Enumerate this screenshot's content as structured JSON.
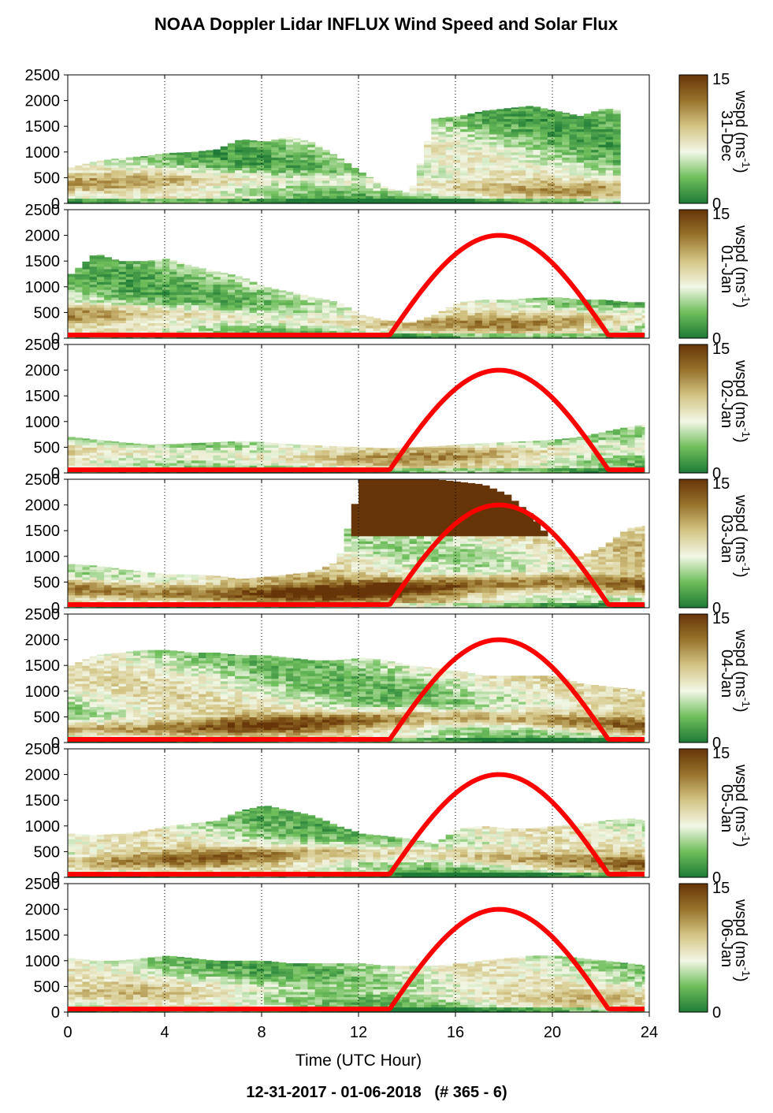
{
  "title": "NOAA Doppler Lidar INFLUX Wind Speed and Solar Flux",
  "footer": "12-31-2017 - 01-06-2018   (# 365 - 6)",
  "colors": {
    "ramp": [
      "#1e7a36",
      "#6fbe5b",
      "#f2f7e6",
      "#d4c585",
      "#98742c",
      "#663508"
    ],
    "solar_curve": "#ff0000"
  },
  "chart_data": {
    "type": "heatmap",
    "xlabel": "Time (UTC Hour)",
    "x_ticks": [
      0,
      4,
      8,
      12,
      16,
      20,
      24
    ],
    "xlim": [
      0,
      24
    ],
    "ylim": [
      0,
      2500
    ],
    "y_ticks": [
      0,
      500,
      1000,
      1500,
      2000,
      2500
    ],
    "colorbar": {
      "label": "wspd (ms-1)",
      "label_main": "wspd (ms",
      "label_sup": "-1",
      "label_close": ")",
      "vmin": 0,
      "vmax": 15,
      "ticks": [
        0,
        15
      ]
    },
    "grid": "dotted vertical lines at x ticks",
    "panels": [
      {
        "date": "31-Dec",
        "solar_curve": false,
        "cover": [
          [
            0,
            700
          ],
          [
            1,
            820
          ],
          [
            2,
            880
          ],
          [
            3,
            920
          ],
          [
            4,
            980
          ],
          [
            5,
            1000
          ],
          [
            6,
            1050
          ],
          [
            7,
            1250
          ],
          [
            8,
            1200
          ],
          [
            9,
            1300
          ],
          [
            10,
            1180
          ],
          [
            11,
            900
          ],
          [
            12,
            600
          ],
          [
            13,
            300
          ],
          [
            14,
            200
          ],
          [
            15,
            1650
          ],
          [
            16,
            1700
          ],
          [
            17,
            1800
          ],
          [
            18,
            1850
          ],
          [
            19,
            1900
          ],
          [
            20,
            1800
          ],
          [
            21,
            1700
          ],
          [
            22,
            1850
          ],
          [
            22.8,
            1800
          ]
        ],
        "end_hour": 22.8,
        "base": 0.28,
        "low_jet": 0.55
      },
      {
        "date": "01-Jan",
        "solar_curve": true,
        "cover": [
          [
            0,
            1250
          ],
          [
            1,
            1650
          ],
          [
            2,
            1500
          ],
          [
            3,
            1500
          ],
          [
            4,
            1550
          ],
          [
            5,
            1400
          ],
          [
            6,
            1300
          ],
          [
            7,
            1200
          ],
          [
            8,
            1000
          ],
          [
            9,
            900
          ],
          [
            10,
            800
          ],
          [
            11,
            700
          ],
          [
            12,
            450
          ],
          [
            13,
            350
          ],
          [
            14,
            300
          ],
          [
            15,
            450
          ],
          [
            16,
            700
          ],
          [
            17,
            750
          ],
          [
            18,
            750
          ],
          [
            19,
            780
          ],
          [
            20,
            800
          ],
          [
            21,
            750
          ],
          [
            22,
            750
          ],
          [
            23,
            700
          ],
          [
            23.8,
            700
          ]
        ],
        "end_hour": 23.8,
        "base": 0.3,
        "low_jet": 0.62
      },
      {
        "date": "02-Jan",
        "solar_curve": true,
        "cover": [
          [
            0,
            700
          ],
          [
            1,
            650
          ],
          [
            2,
            600
          ],
          [
            3,
            560
          ],
          [
            4,
            560
          ],
          [
            5,
            580
          ],
          [
            6,
            600
          ],
          [
            7,
            620
          ],
          [
            8,
            600
          ],
          [
            9,
            560
          ],
          [
            10,
            540
          ],
          [
            11,
            520
          ],
          [
            12,
            500
          ],
          [
            13,
            480
          ],
          [
            14,
            500
          ],
          [
            15,
            520
          ],
          [
            16,
            550
          ],
          [
            17,
            580
          ],
          [
            18,
            600
          ],
          [
            19,
            620
          ],
          [
            20,
            650
          ],
          [
            21,
            700
          ],
          [
            22,
            800
          ],
          [
            23,
            900
          ],
          [
            23.8,
            950
          ]
        ],
        "end_hour": 23.8,
        "base": 0.32,
        "low_jet": 0.58
      },
      {
        "date": "03-Jan",
        "solar_curve": true,
        "cover": [
          [
            0,
            850
          ],
          [
            1,
            820
          ],
          [
            2,
            760
          ],
          [
            3,
            700
          ],
          [
            4,
            650
          ],
          [
            5,
            650
          ],
          [
            6,
            620
          ],
          [
            7,
            560
          ],
          [
            8,
            600
          ],
          [
            9,
            650
          ],
          [
            10,
            700
          ],
          [
            11,
            900
          ],
          [
            12,
            2500
          ],
          [
            13,
            2500
          ],
          [
            14,
            2500
          ],
          [
            15,
            2500
          ],
          [
            16,
            2450
          ],
          [
            17,
            2400
          ],
          [
            18,
            2200
          ],
          [
            19,
            1800
          ],
          [
            20,
            1200
          ],
          [
            21,
            1000
          ],
          [
            22,
            1200
          ],
          [
            23,
            1550
          ],
          [
            23.8,
            1600
          ]
        ],
        "end_hour": 23.8,
        "base": 0.45,
        "low_jet": 0.95
      },
      {
        "date": "04-Jan",
        "solar_curve": true,
        "cover": [
          [
            0,
            1500
          ],
          [
            1,
            1700
          ],
          [
            2,
            1750
          ],
          [
            3,
            1800
          ],
          [
            4,
            1800
          ],
          [
            5,
            1750
          ],
          [
            6,
            1750
          ],
          [
            7,
            1700
          ],
          [
            8,
            1700
          ],
          [
            9,
            1650
          ],
          [
            10,
            1600
          ],
          [
            11,
            1600
          ],
          [
            12,
            1650
          ],
          [
            13,
            1600
          ],
          [
            14,
            1500
          ],
          [
            15,
            1450
          ],
          [
            16,
            1400
          ],
          [
            17,
            1300
          ],
          [
            18,
            1300
          ],
          [
            19,
            1300
          ],
          [
            20,
            1300
          ],
          [
            21,
            1150
          ],
          [
            22,
            1100
          ],
          [
            23,
            1050
          ],
          [
            23.8,
            1000
          ]
        ],
        "end_hour": 23.8,
        "base": 0.35,
        "low_jet": 0.82
      },
      {
        "date": "05-Jan",
        "solar_curve": true,
        "cover": [
          [
            0,
            850
          ],
          [
            1,
            820
          ],
          [
            2,
            850
          ],
          [
            3,
            900
          ],
          [
            4,
            1000
          ],
          [
            5,
            1050
          ],
          [
            6,
            1100
          ],
          [
            7,
            1300
          ],
          [
            8,
            1400
          ],
          [
            9,
            1300
          ],
          [
            10,
            1200
          ],
          [
            11,
            1000
          ],
          [
            12,
            850
          ],
          [
            13,
            800
          ],
          [
            14,
            750
          ],
          [
            15,
            650
          ],
          [
            16,
            950
          ],
          [
            17,
            1000
          ],
          [
            18,
            950
          ],
          [
            19,
            950
          ],
          [
            20,
            1000
          ],
          [
            21,
            1050
          ],
          [
            22,
            1100
          ],
          [
            23,
            1150
          ],
          [
            23.8,
            1100
          ]
        ],
        "end_hour": 23.8,
        "base": 0.32,
        "low_jet": 0.7
      },
      {
        "date": "06-Jan",
        "solar_curve": true,
        "cover": [
          [
            0,
            1050
          ],
          [
            1,
            1000
          ],
          [
            2,
            1000
          ],
          [
            3,
            1050
          ],
          [
            4,
            1100
          ],
          [
            5,
            1050
          ],
          [
            6,
            1000
          ],
          [
            7,
            1000
          ],
          [
            8,
            1000
          ],
          [
            9,
            950
          ],
          [
            10,
            950
          ],
          [
            11,
            950
          ],
          [
            12,
            950
          ],
          [
            13,
            900
          ],
          [
            14,
            900
          ],
          [
            15,
            900
          ],
          [
            16,
            950
          ],
          [
            17,
            1000
          ],
          [
            18,
            1050
          ],
          [
            19,
            1100
          ],
          [
            20,
            1100
          ],
          [
            21,
            1050
          ],
          [
            22,
            1000
          ],
          [
            23,
            950
          ],
          [
            23.8,
            900
          ]
        ],
        "end_hour": 23.8,
        "base": 0.3,
        "low_jet": 0.45
      }
    ],
    "solar_flux": {
      "start_hour": 13.2,
      "peak_hour": 17.8,
      "end_hour": 22.4,
      "peak_value": 2000
    }
  }
}
